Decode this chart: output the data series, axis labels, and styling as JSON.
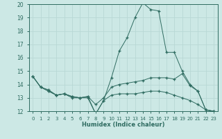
{
  "xlabel": "Humidex (Indice chaleur)",
  "xlim": [
    -0.5,
    23.5
  ],
  "ylim": [
    12,
    20
  ],
  "yticks": [
    12,
    13,
    14,
    15,
    16,
    17,
    18,
    19,
    20
  ],
  "xticks": [
    0,
    1,
    2,
    3,
    4,
    5,
    6,
    7,
    8,
    9,
    10,
    11,
    12,
    13,
    14,
    15,
    16,
    17,
    18,
    19,
    20,
    21,
    22,
    23
  ],
  "bg_color": "#cce8e5",
  "grid_color": "#b8d8d5",
  "line_color": "#2e6b60",
  "line1_x": [
    0,
    1,
    2,
    3,
    4,
    5,
    6,
    7,
    8,
    9,
    10,
    11,
    12,
    13,
    14,
    15,
    16,
    17,
    18,
    19,
    20,
    21,
    22,
    23
  ],
  "line1_y": [
    14.6,
    13.8,
    13.6,
    13.2,
    13.3,
    13.0,
    13.0,
    13.0,
    11.8,
    12.8,
    14.5,
    16.5,
    17.5,
    19.0,
    20.1,
    19.6,
    19.5,
    16.4,
    16.4,
    15.0,
    14.0,
    13.5,
    12.1,
    12.0
  ],
  "line2_x": [
    0,
    1,
    2,
    3,
    4,
    5,
    6,
    7,
    8,
    9,
    10,
    11,
    12,
    13,
    14,
    15,
    16,
    17,
    18,
    19,
    20,
    21,
    22,
    23
  ],
  "line2_y": [
    14.6,
    13.8,
    13.5,
    13.2,
    13.3,
    13.1,
    13.0,
    13.1,
    12.5,
    13.0,
    13.8,
    14.0,
    14.1,
    14.2,
    14.3,
    14.5,
    14.5,
    14.5,
    14.4,
    14.8,
    13.9,
    13.5,
    12.1,
    12.0
  ],
  "line3_x": [
    0,
    1,
    2,
    3,
    4,
    5,
    6,
    7,
    8,
    9,
    10,
    11,
    12,
    13,
    14,
    15,
    16,
    17,
    18,
    19,
    20,
    21,
    22,
    23
  ],
  "line3_y": [
    14.6,
    13.8,
    13.5,
    13.2,
    13.3,
    13.1,
    13.0,
    13.1,
    11.8,
    12.8,
    13.2,
    13.3,
    13.3,
    13.3,
    13.4,
    13.5,
    13.5,
    13.4,
    13.2,
    13.0,
    12.8,
    12.5,
    12.1,
    12.0
  ]
}
